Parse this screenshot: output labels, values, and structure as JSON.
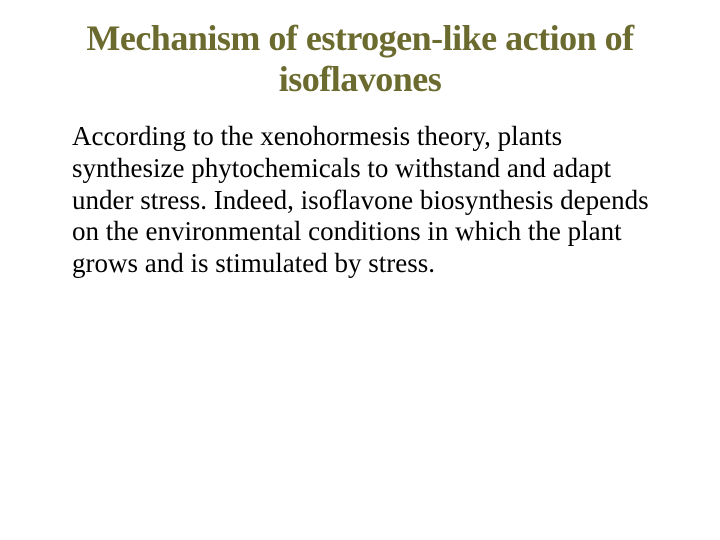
{
  "slide": {
    "title": "Mechanism of estrogen-like action of isoflavones",
    "body": "According to the xenohormesis theory, plants synthesize phytochemicals to withstand and adapt under stress. Indeed, isoflavone biosynthesis depends on the environmental conditions in which the plant grows and is stimulated by stress.",
    "title_color": "#6b6b2f",
    "body_color": "#000000",
    "background_color": "#ffffff",
    "title_fontsize": 36,
    "body_fontsize": 27,
    "font_family": "Times New Roman"
  }
}
